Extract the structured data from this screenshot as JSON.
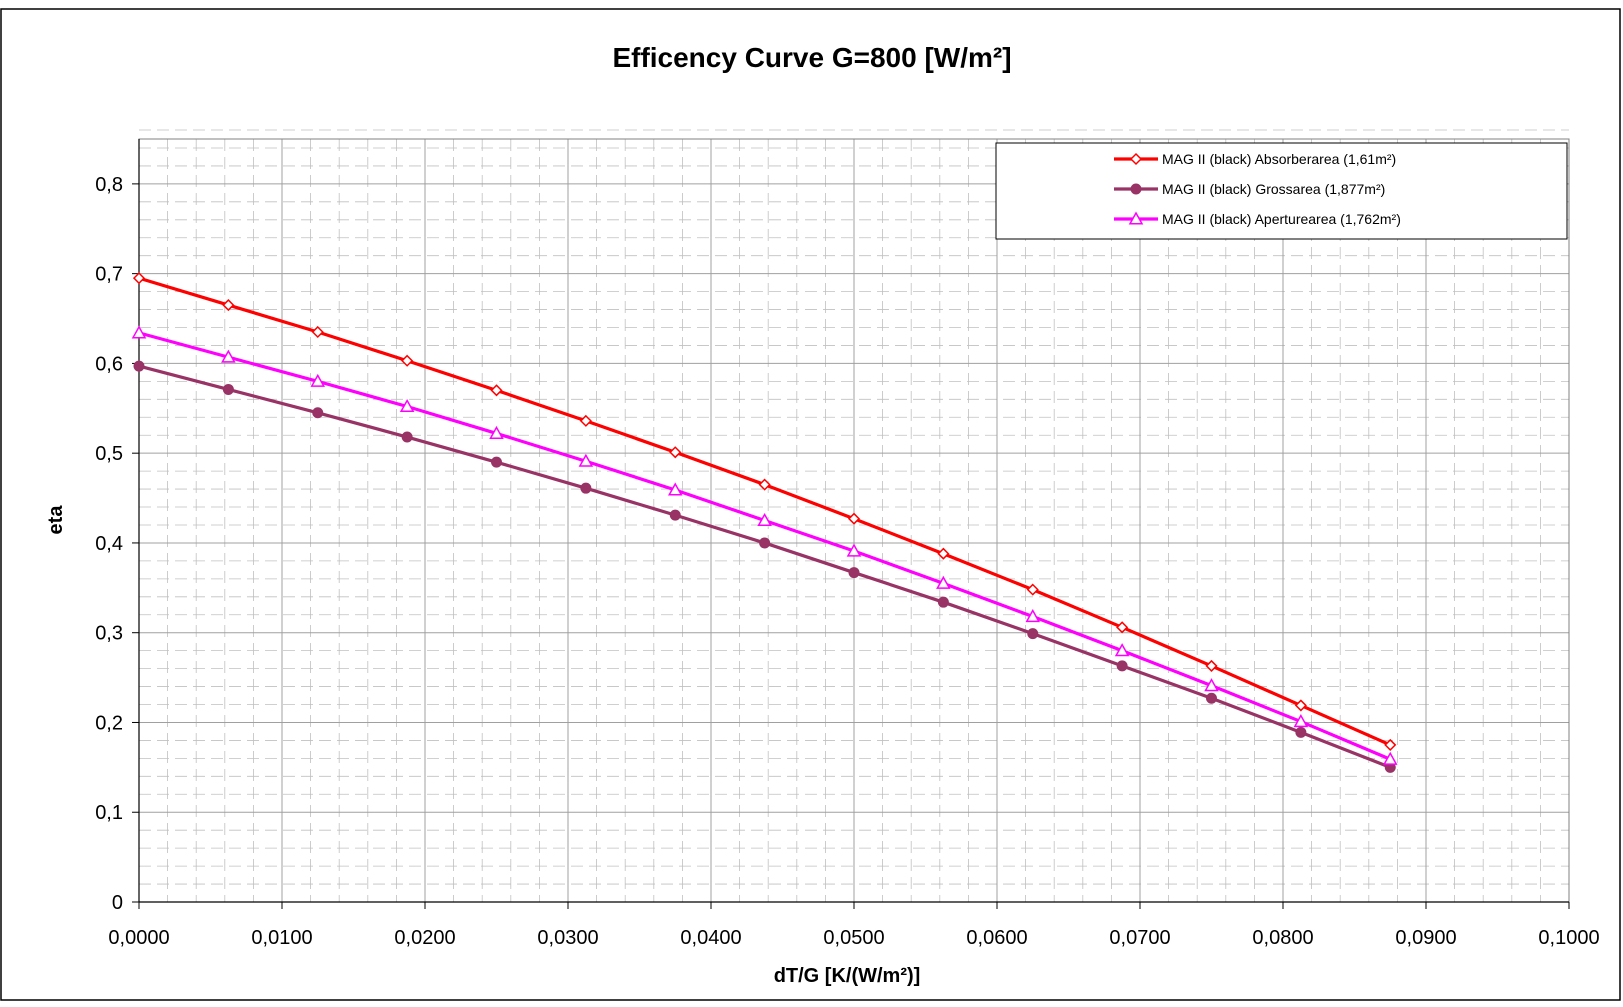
{
  "chart_data": {
    "type": "line",
    "title": "Efficency Curve  G=800 [W/m²]",
    "xlabel": "dT/G [K/(W/m²)]",
    "ylabel": "eta",
    "xlim": [
      0,
      0.1
    ],
    "ylim": [
      0,
      0.85
    ],
    "x_ticks": [
      0,
      0.01,
      0.02,
      0.03,
      0.04,
      0.05,
      0.06,
      0.07,
      0.08,
      0.09,
      0.1
    ],
    "x_tick_labels": [
      "0,0000",
      "0,0100",
      "0,0200",
      "0,0300",
      "0,0400",
      "0,0500",
      "0,0600",
      "0,0700",
      "0,0800",
      "0,0900",
      "0,1000"
    ],
    "y_ticks": [
      0,
      0.1,
      0.2,
      0.3,
      0.4,
      0.5,
      0.6,
      0.7,
      0.8
    ],
    "y_tick_labels": [
      "0",
      "0,1",
      "0,2",
      "0,3",
      "0,4",
      "0,5",
      "0,6",
      "0,7",
      "0,8"
    ],
    "grid": "major and minor, dashed",
    "legend_position": "top-right",
    "x": [
      0,
      0.00625,
      0.0125,
      0.01875,
      0.025,
      0.03125,
      0.0375,
      0.04375,
      0.05,
      0.05625,
      0.0625,
      0.06875,
      0.075,
      0.08125,
      0.0875
    ],
    "series": [
      {
        "name": "MAG II (black) Absorberarea (1,61m²)",
        "color": "#ff0000",
        "marker": "diamond",
        "values": [
          0.695,
          0.665,
          0.635,
          0.603,
          0.57,
          0.536,
          0.501,
          0.465,
          0.427,
          0.388,
          0.348,
          0.306,
          0.263,
          0.219,
          0.175
        ]
      },
      {
        "name": "MAG II (black) Grossarea (1,877m²)",
        "color": "#993366",
        "marker": "circle",
        "values": [
          0.597,
          0.571,
          0.545,
          0.518,
          0.49,
          0.461,
          0.431,
          0.4,
          0.367,
          0.334,
          0.299,
          0.263,
          0.227,
          0.189,
          0.15
        ]
      },
      {
        "name": "MAG II (black) Aperturearea  (1,762m²)",
        "color": "#ff00ff",
        "marker": "triangle",
        "values": [
          0.634,
          0.607,
          0.58,
          0.552,
          0.522,
          0.491,
          0.459,
          0.425,
          0.391,
          0.355,
          0.318,
          0.28,
          0.241,
          0.201,
          0.159
        ]
      }
    ]
  }
}
